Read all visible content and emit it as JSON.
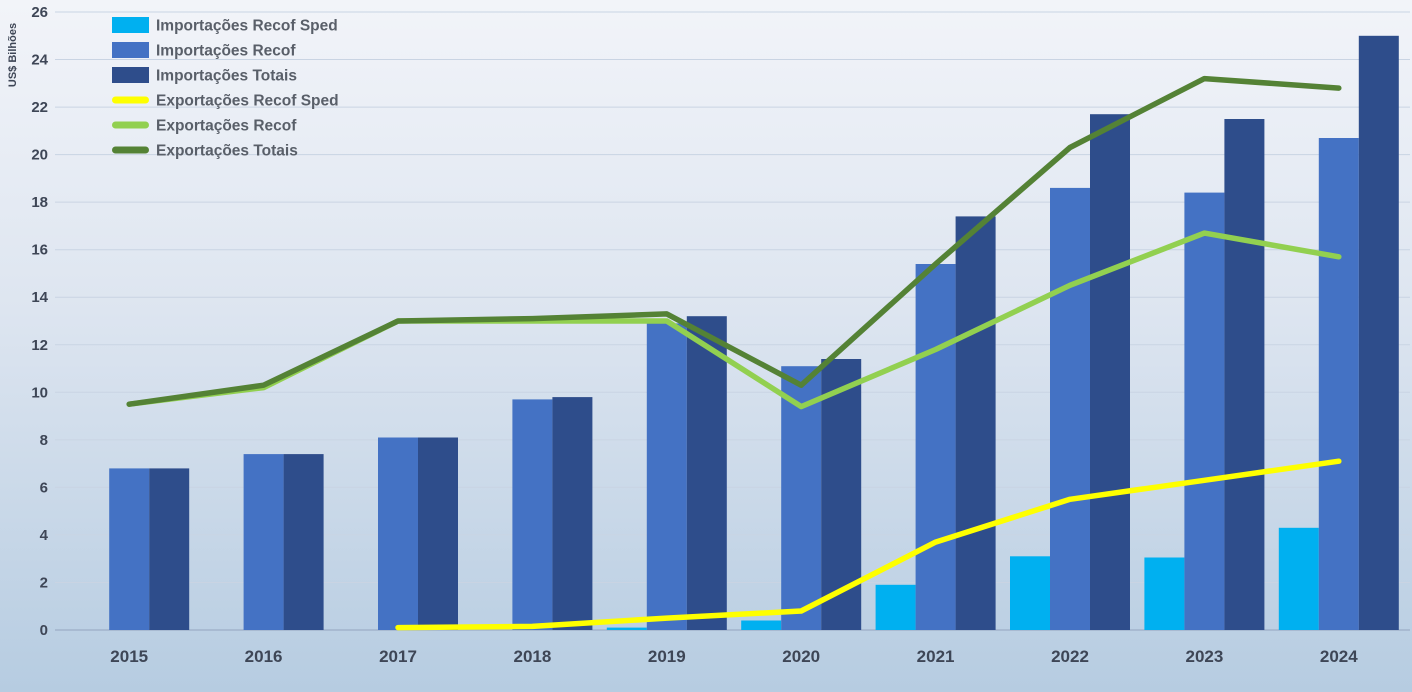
{
  "chart_data": {
    "type": "bar",
    "subtype": "bar+line-combo",
    "title": "",
    "ylabel": "US$ Bilhões",
    "ylim": [
      0,
      26
    ],
    "ytick_step": 2,
    "grid": true,
    "legend_position": "top-left",
    "categories": [
      "2015",
      "2016",
      "2017",
      "2018",
      "2019",
      "2020",
      "2021",
      "2022",
      "2023",
      "2024"
    ],
    "bar_series": [
      {
        "name": "Importações Recof Sped",
        "color": "#00b0f0",
        "values": [
          0,
          0,
          0,
          0,
          0.1,
          0.4,
          1.9,
          3.1,
          3.05,
          4.3
        ]
      },
      {
        "name": "Importações Recof",
        "color": "#4472c4",
        "values": [
          6.8,
          7.4,
          8.1,
          9.7,
          12.9,
          11.1,
          15.4,
          18.6,
          18.4,
          20.7
        ]
      },
      {
        "name": "Importações Totais",
        "color": "#2e4d8b",
        "values": [
          6.8,
          7.4,
          8.1,
          9.8,
          13.2,
          11.4,
          17.4,
          21.7,
          21.5,
          25.0
        ]
      }
    ],
    "line_series": [
      {
        "name": "Exportações Recof Sped",
        "color": "#feff00",
        "values": [
          null,
          null,
          0.1,
          0.15,
          0.5,
          0.8,
          3.7,
          5.5,
          6.3,
          7.1
        ]
      },
      {
        "name": "Exportações Recof",
        "color": "#92d050",
        "values": [
          9.5,
          10.2,
          13.0,
          13.0,
          13.0,
          9.4,
          11.8,
          14.5,
          16.7,
          15.7
        ]
      },
      {
        "name": "Exportações Totais",
        "color": "#548235",
        "values": [
          9.5,
          10.3,
          13.0,
          13.1,
          13.3,
          10.3,
          15.4,
          20.3,
          23.2,
          22.8
        ]
      }
    ]
  },
  "colors": {
    "background_top": "#f2f4f9",
    "background_bottom": "#b6cce1",
    "gridline": "#c9d4e3",
    "axis_line": "#9cadc6",
    "axis_text": "#3e4656",
    "legend_text": "#595f69"
  }
}
